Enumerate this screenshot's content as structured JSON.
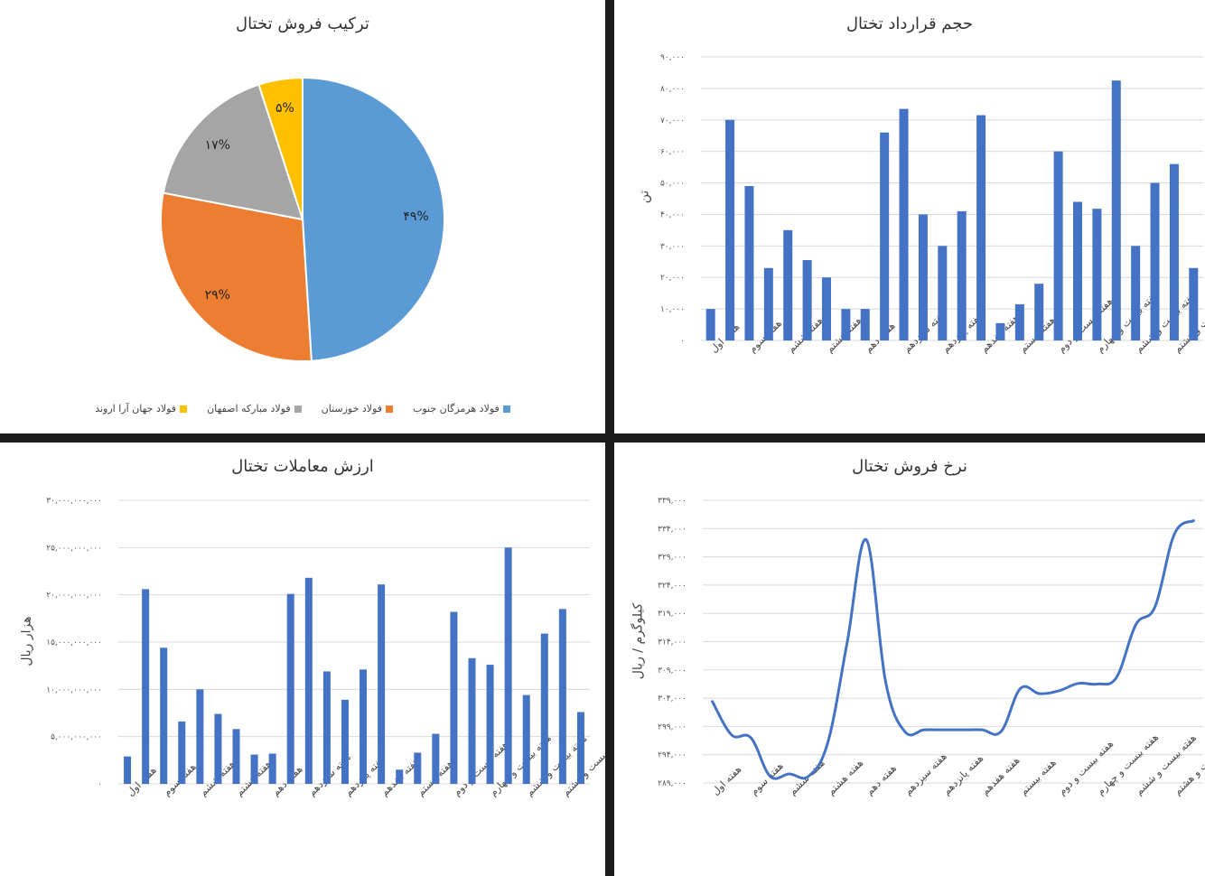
{
  "chart_data": [
    {
      "type": "pie",
      "title": "ترکیب فروش تختال",
      "legend_position": "bottom",
      "slices": [
        {
          "name": "فولاد هرمزگان جنوب",
          "value": 49,
          "label": "۴۹%",
          "color": "#5b9bd5"
        },
        {
          "name": "فولاد خوزستان",
          "value": 29,
          "label": "۲۹%",
          "color": "#ed7d31"
        },
        {
          "name": "فولاد مبارکه اصفهان",
          "value": 17,
          "label": "۱۷%",
          "color": "#a5a5a5"
        },
        {
          "name": "فولاد جهان آرا اروند",
          "value": 5,
          "label": "۵%",
          "color": "#ffc000"
        }
      ]
    },
    {
      "type": "bar",
      "title": "حجم قرارداد تختال",
      "ylabel": "تن",
      "ylim": [
        0,
        90000
      ],
      "grid": true,
      "color": "#4472c4",
      "yticks": [
        "۰",
        "۱۰,۰۰۰",
        "۲۰,۰۰۰",
        "۳۰,۰۰۰",
        "۴۰,۰۰۰",
        "۵۰,۰۰۰",
        "۶۰,۰۰۰",
        "۷۰,۰۰۰",
        "۸۰,۰۰۰",
        "۹۰,۰۰۰"
      ],
      "categories": [
        "هفته اول",
        "",
        "هفته سوم",
        "",
        "هفته ششم",
        "",
        "هفته هشتم",
        "",
        "هفته دهم",
        "",
        "هفته سیزدهم",
        "",
        "هفته پانزدهم",
        "",
        "هفته هفدهم",
        "",
        "هفته بیستم",
        "",
        "هفته بیست و دوم",
        "",
        "هفته بیست و چهارم",
        "",
        "هفته بیست و ششم",
        "",
        "هفته بیست و هشتم",
        ""
      ],
      "values": [
        10000,
        70000,
        49000,
        23000,
        35000,
        25500,
        20000,
        10000,
        10000,
        66000,
        73500,
        40000,
        30000,
        41000,
        71500,
        5500,
        11500,
        18000,
        60000,
        44000,
        41800,
        82500,
        30000,
        50000,
        56000,
        23000
      ]
    },
    {
      "type": "bar",
      "title": "ارزش معاملات تختال",
      "ylabel": "هزار ریال",
      "ylim": [
        0,
        30000000000
      ],
      "grid": true,
      "color": "#4472c4",
      "yticks": [
        "۰",
        "۵,۰۰۰,۰۰۰,۰۰۰",
        "۱۰,۰۰۰,۰۰۰,۰۰۰",
        "۱۵,۰۰۰,۰۰۰,۰۰۰",
        "۲۰,۰۰۰,۰۰۰,۰۰۰",
        "۲۵,۰۰۰,۰۰۰,۰۰۰",
        "۳۰,۰۰۰,۰۰۰,۰۰۰"
      ],
      "categories": [
        "هفته اول",
        "",
        "هفته سوم",
        "",
        "هفته ششم",
        "",
        "هفته هشتم",
        "",
        "هفته دهم",
        "",
        "هفته سیزدهم",
        "",
        "هفته پانزدهم",
        "",
        "هفته هفدهم",
        "",
        "هفته بیستم",
        "",
        "هفته بیست و دوم",
        "",
        "هفته بیست و چهارم",
        "",
        "هفته بیست و ششم",
        "",
        "هفته بیست و هشتم",
        ""
      ],
      "values": [
        2900000000,
        20600000000,
        14400000000,
        6600000000,
        10000000000,
        7400000000,
        5800000000,
        3100000000,
        3200000000,
        20100000000,
        21800000000,
        11900000000,
        8900000000,
        12100000000,
        21100000000,
        1500000000,
        3300000000,
        5300000000,
        18200000000,
        13300000000,
        12600000000,
        25000000000,
        9400000000,
        15900000000,
        18500000000,
        7600000000
      ]
    },
    {
      "type": "line",
      "title": "نرخ فروش تختال",
      "ylabel": "کیلوگرم / ریال",
      "ylim": [
        289000,
        339000
      ],
      "grid": true,
      "color": "#4472c4",
      "yticks": [
        "۲۸۹,۰۰۰",
        "۲۹۴,۰۰۰",
        "۲۹۹,۰۰۰",
        "۳۰۴,۰۰۰",
        "۳۰۹,۰۰۰",
        "۳۱۴,۰۰۰",
        "۳۱۹,۰۰۰",
        "۳۲۴,۰۰۰",
        "۳۲۹,۰۰۰",
        "۳۳۴,۰۰۰",
        "۳۳۹,۰۰۰"
      ],
      "categories": [
        "هفته اول",
        "",
        "هفته سوم",
        "",
        "هفته ششم",
        "",
        "هفته هشتم",
        "",
        "هفته دهم",
        "",
        "هفته سیزدهم",
        "",
        "هفته پانزدهم",
        "",
        "هفته هفدهم",
        "",
        "هفته بیستم",
        "",
        "هفته بیست و دوم",
        "",
        "هفته بیست و چهارم",
        "",
        "هفته بیست و ششم",
        "",
        "هفته بیست و هشتم",
        ""
      ],
      "values": [
        303400,
        297500,
        297000,
        290200,
        290600,
        290200,
        296200,
        313800,
        332000,
        306900,
        298100,
        298400,
        298400,
        298400,
        298400,
        298100,
        305700,
        304800,
        305300,
        306600,
        306500,
        307700,
        317000,
        320200,
        333000,
        335400
      ]
    }
  ]
}
